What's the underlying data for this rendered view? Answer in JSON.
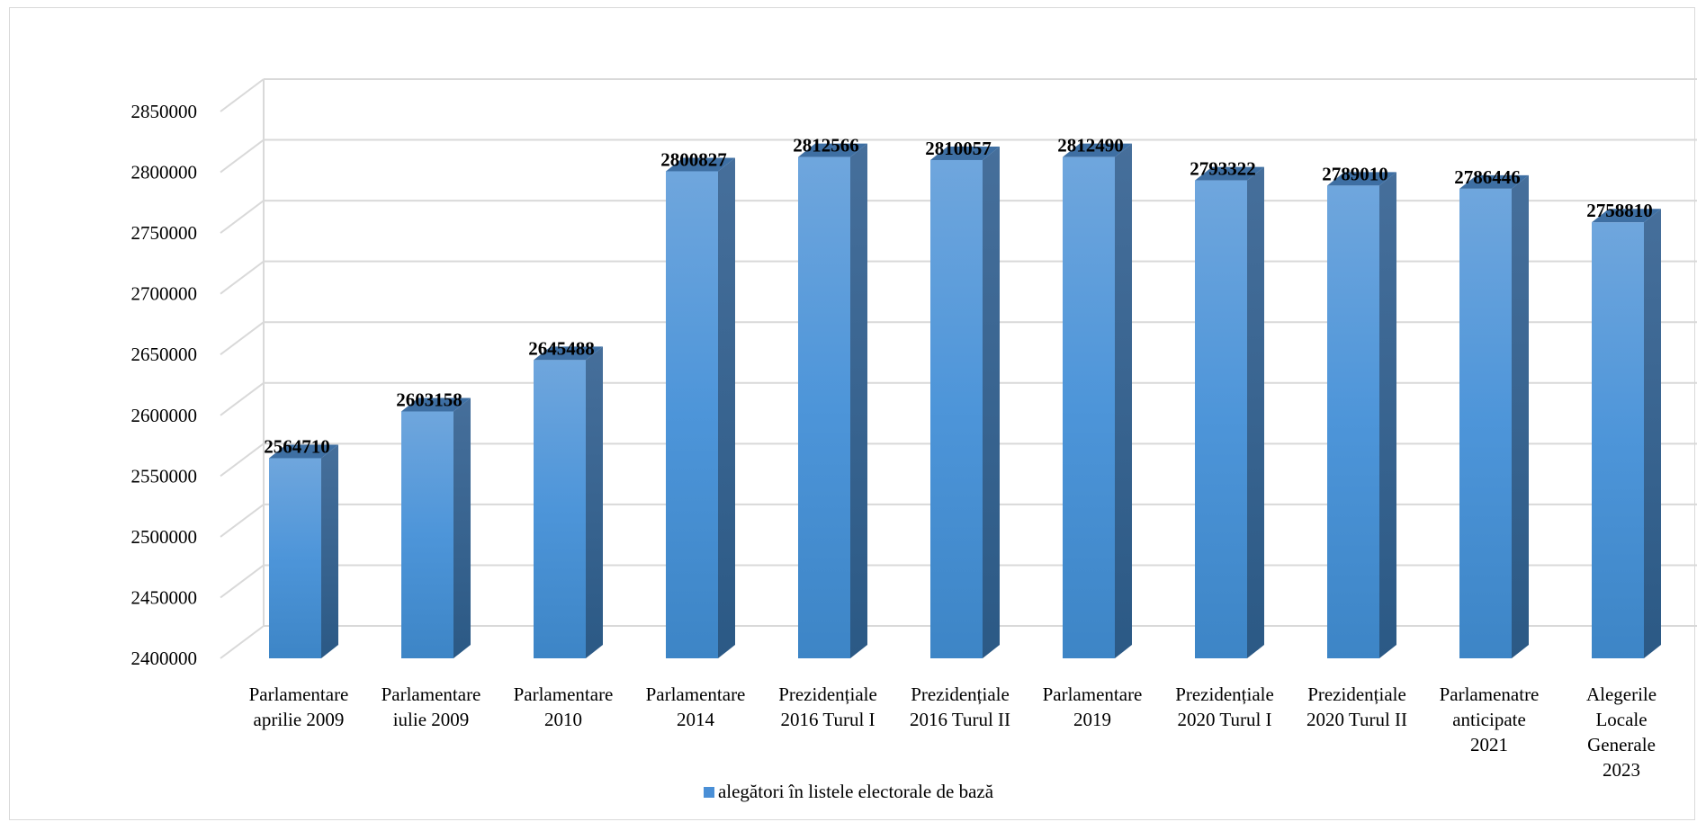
{
  "chart_data": {
    "type": "bar",
    "style": "3d-column",
    "categories": [
      [
        "Parlamentare",
        "aprilie 2009"
      ],
      [
        "Parlamentare",
        "iulie 2009"
      ],
      [
        "Parlamentare",
        "2010"
      ],
      [
        "Parlamentare",
        "2014"
      ],
      [
        "Prezidențiale",
        "2016 Turul I"
      ],
      [
        "Prezidențiale",
        "2016 Turul II"
      ],
      [
        "Parlamentare",
        "2019"
      ],
      [
        "Prezidențiale",
        "2020 Turul I"
      ],
      [
        "Prezidențiale",
        "2020 Turul II"
      ],
      [
        "Parlamenatre",
        "anticipate",
        "2021"
      ],
      [
        "Alegerile",
        "Locale",
        "Generale",
        "2023"
      ]
    ],
    "series": [
      {
        "name": "alegători în listele electorale de bază",
        "values": [
          2564710,
          2603158,
          2645488,
          2800827,
          2812566,
          2810057,
          2812490,
          2793322,
          2789010,
          2786446,
          2758810
        ]
      }
    ],
    "data_labels": [
      "2564710",
      "2603158",
      "2645488",
      "2800827",
      "2812566",
      "2810057",
      "2812490",
      "2793322",
      "2789010",
      "2786446",
      "2758810"
    ],
    "yticks": [
      "2400000",
      "2450000",
      "2500000",
      "2550000",
      "2600000",
      "2650000",
      "2700000",
      "2750000",
      "2800000",
      "2850000"
    ],
    "ylim": [
      2400000,
      2850000
    ],
    "title": "",
    "xlabel": "",
    "ylabel": "",
    "grid": true,
    "legend_position": "bottom",
    "colors": {
      "bar_front": "#4a8fd6",
      "bar_side": "#2f5f8e",
      "bar_top": "#3e6fa3",
      "grid": "#d9d9d9"
    }
  },
  "legend": {
    "label": "alegători în listele electorale de bază"
  }
}
